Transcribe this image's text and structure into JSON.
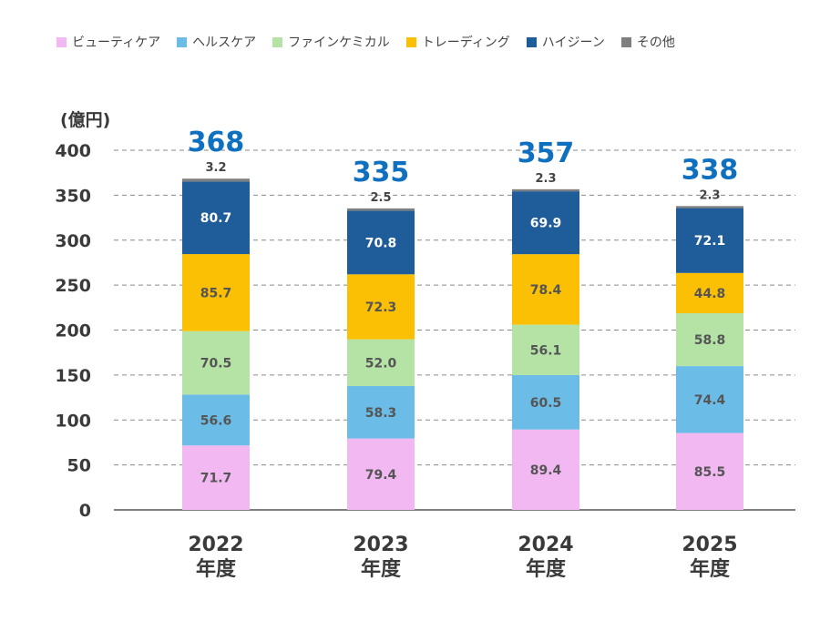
{
  "chart_data": {
    "type": "bar",
    "stacked": true,
    "unit_label": "(億円)",
    "categories": [
      [
        "2022",
        "年度"
      ],
      [
        "2023",
        "年度"
      ],
      [
        "2024",
        "年度"
      ],
      [
        "2025",
        "年度"
      ]
    ],
    "series": [
      {
        "name": "ビューティケア",
        "color": "#f2b8f2",
        "label_color": "#555555",
        "values": [
          71.7,
          79.4,
          89.4,
          85.5
        ]
      },
      {
        "name": "ヘルスケア",
        "color": "#6bbde8",
        "label_color": "#555555",
        "values": [
          56.6,
          58.3,
          60.5,
          74.4
        ]
      },
      {
        "name": "ファインケミカル",
        "color": "#b5e3a6",
        "label_color": "#555555",
        "values": [
          70.5,
          52.0,
          56.1,
          58.8
        ]
      },
      {
        "name": "トレーディング",
        "color": "#fbbf04",
        "label_color": "#555555",
        "values": [
          85.7,
          72.3,
          78.4,
          44.8
        ]
      },
      {
        "name": "ハイジーン",
        "color": "#1f5c9a",
        "label_color": "#ffffff",
        "values": [
          80.7,
          70.8,
          69.9,
          72.1
        ]
      },
      {
        "name": "その他",
        "color": "#7f7f7f",
        "label_color": "#444444",
        "values": [
          3.2,
          2.5,
          2.3,
          2.3
        ]
      }
    ],
    "totals": [
      368,
      335,
      357,
      338
    ],
    "ylim": [
      0,
      400
    ],
    "yticks": [
      0,
      50,
      100,
      150,
      200,
      250,
      300,
      350,
      400
    ],
    "grid": "dashed-horizontal",
    "legend_position": "top"
  }
}
